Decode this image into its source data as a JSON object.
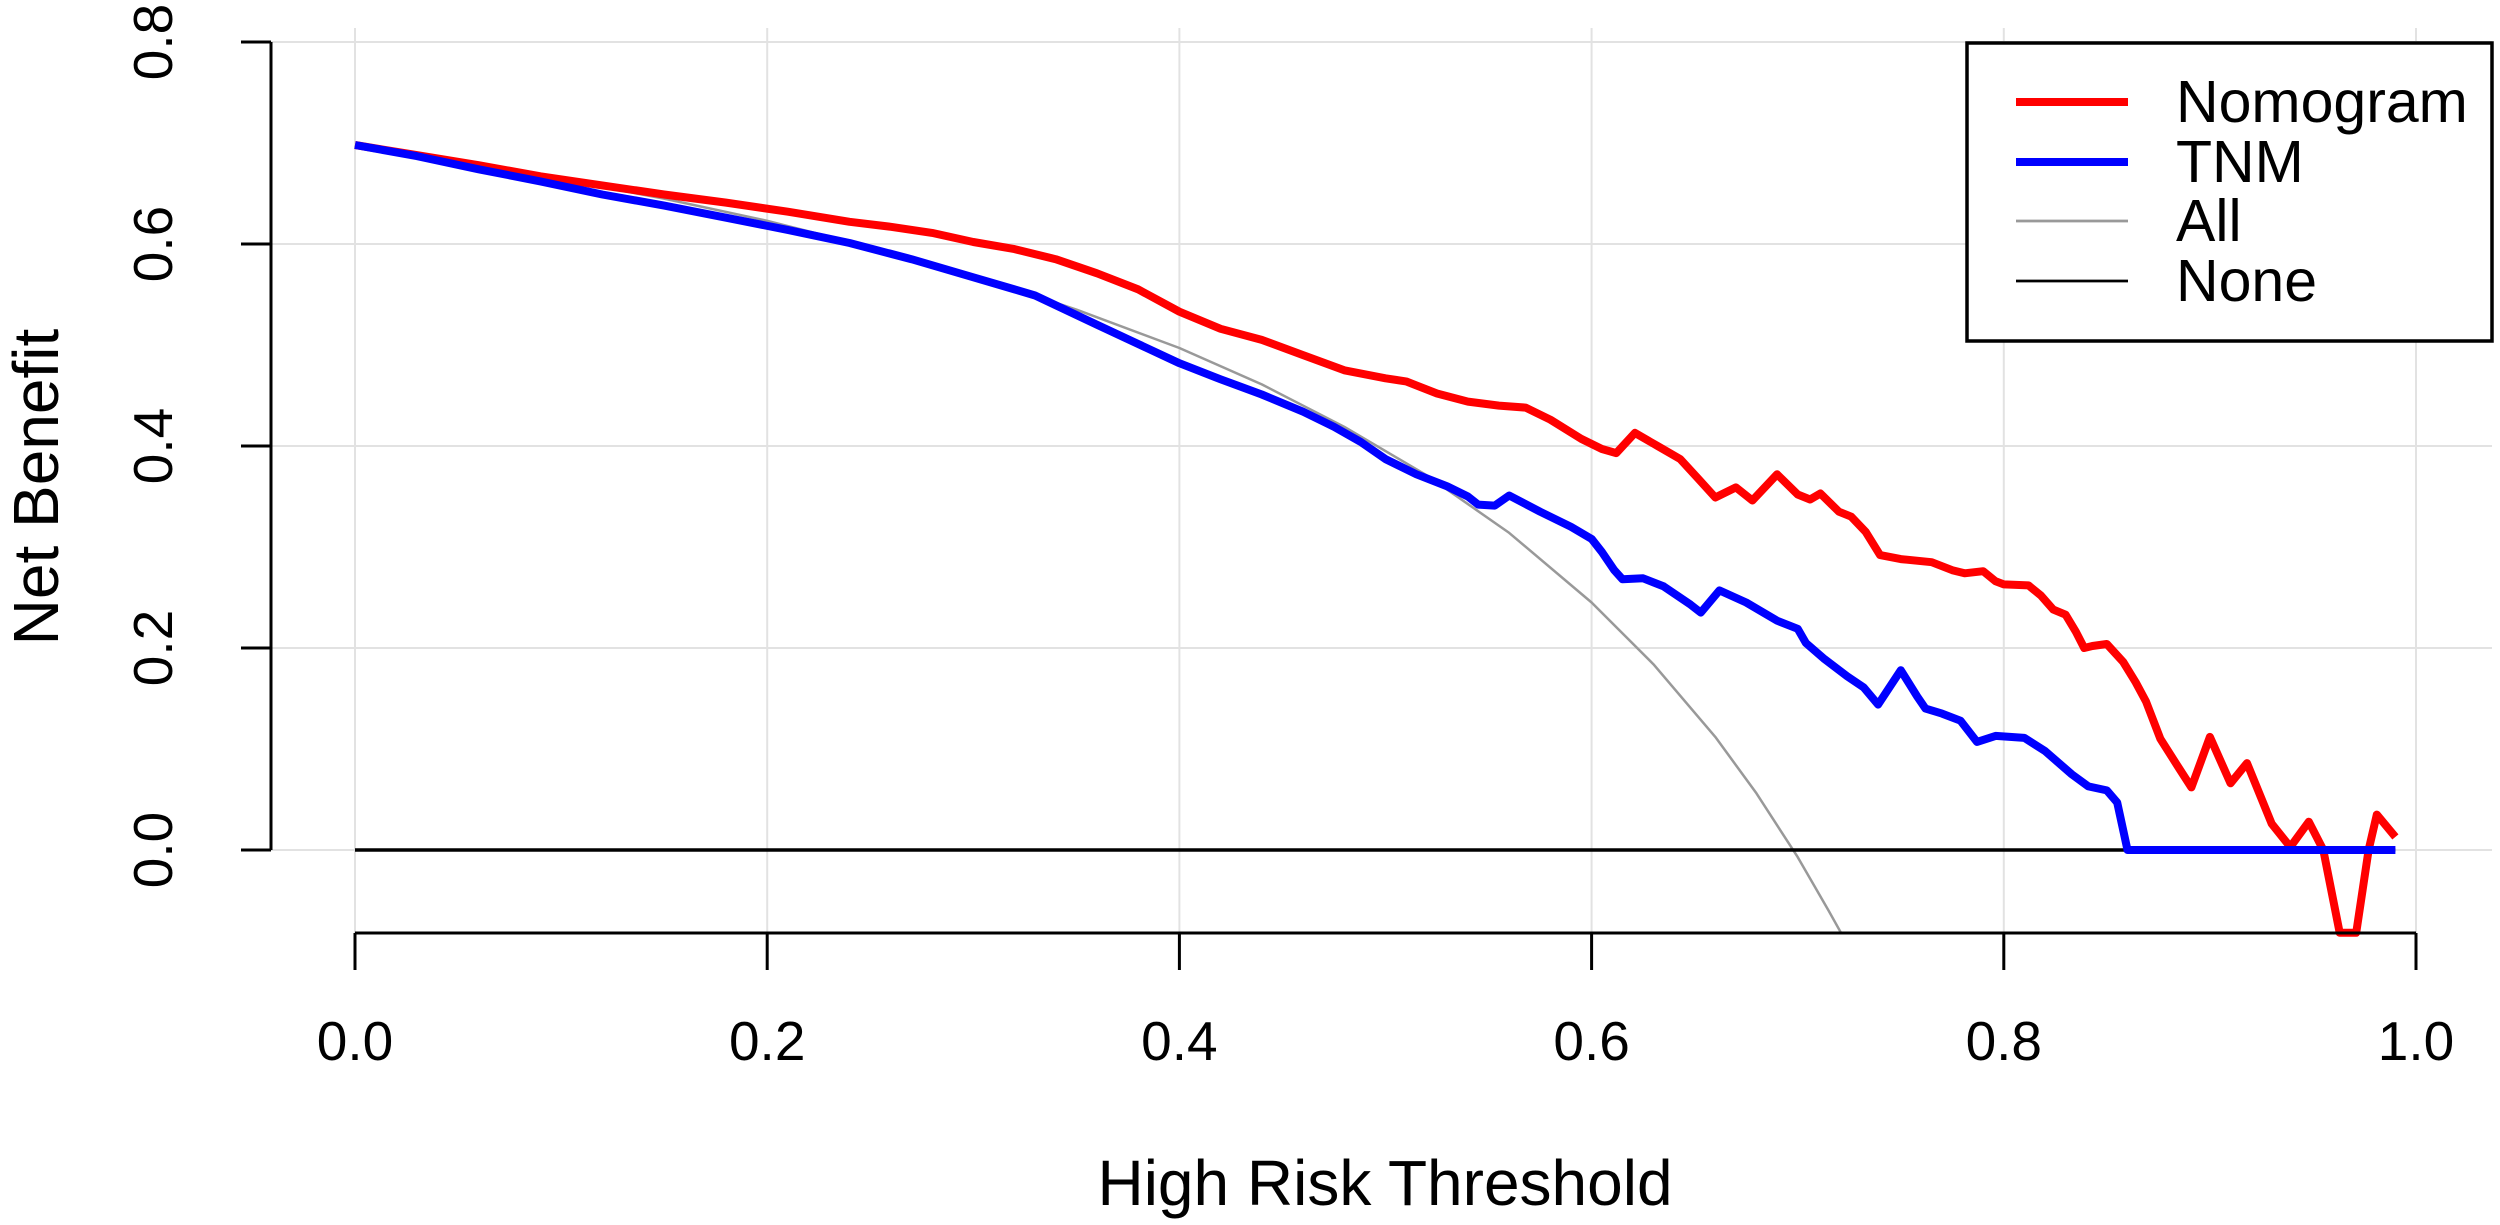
{
  "figure": {
    "background": "#ffffff",
    "kind": "R base-graphics decision curve analysis plot"
  },
  "chart_data": {
    "type": "line",
    "title": "",
    "xlabel": "High Risk Threshold",
    "ylabel": "Net Benefit",
    "xlim": [
      0.0,
      1.0
    ],
    "ylim": [
      -0.082,
      0.8
    ],
    "grid": true,
    "grid_color": "#e2e2e2",
    "axis_color": "#000000",
    "x_ticks": [
      {
        "value": 0.0,
        "label": "0.0"
      },
      {
        "value": 0.2,
        "label": "0.2"
      },
      {
        "value": 0.4,
        "label": "0.4"
      },
      {
        "value": 0.6,
        "label": "0.6"
      },
      {
        "value": 0.8,
        "label": "0.8"
      },
      {
        "value": 1.0,
        "label": "1.0"
      }
    ],
    "y_ticks": [
      {
        "value": 0.0,
        "label": "0.0"
      },
      {
        "value": 0.2,
        "label": "0.2"
      },
      {
        "value": 0.4,
        "label": "0.4"
      },
      {
        "value": 0.6,
        "label": "0.6"
      },
      {
        "value": 0.8,
        "label": "0.8"
      }
    ],
    "legend": {
      "position": "top-right",
      "border_color": "#000000",
      "fill": "#ffffff",
      "entries": [
        {
          "label": "Nomogram",
          "color": "#ff0000",
          "lineweight": "thick"
        },
        {
          "label": "TNM",
          "color": "#0000ff",
          "lineweight": "thick"
        },
        {
          "label": "All",
          "color": "#999999",
          "lineweight": "thin"
        },
        {
          "label": "None",
          "color": "#000000",
          "lineweight": "thin"
        }
      ]
    },
    "series": [
      {
        "name": "All",
        "color": "#999999",
        "stroke_width": 2.5,
        "points": [
          [
            0.0,
            0.698
          ],
          [
            0.05,
            0.682
          ],
          [
            0.1,
            0.664
          ],
          [
            0.15,
            0.645
          ],
          [
            0.2,
            0.623
          ],
          [
            0.25,
            0.597
          ],
          [
            0.3,
            0.569
          ],
          [
            0.35,
            0.535
          ],
          [
            0.4,
            0.497
          ],
          [
            0.44,
            0.461
          ],
          [
            0.48,
            0.419
          ],
          [
            0.52,
            0.371
          ],
          [
            0.56,
            0.314
          ],
          [
            0.6,
            0.245
          ],
          [
            0.63,
            0.184
          ],
          [
            0.66,
            0.112
          ],
          [
            0.68,
            0.056
          ],
          [
            0.7,
            -0.007
          ],
          [
            0.715,
            -0.06
          ],
          [
            0.721,
            -0.082
          ]
        ]
      },
      {
        "name": "None",
        "color": "#000000",
        "stroke_width": 3.5,
        "points": [
          [
            0.0,
            0.0
          ],
          [
            0.99,
            0.0
          ]
        ]
      },
      {
        "name": "Nomogram",
        "color": "#ff0000",
        "stroke_width": 8,
        "points": [
          [
            0.0,
            0.698
          ],
          [
            0.03,
            0.688
          ],
          [
            0.06,
            0.678
          ],
          [
            0.09,
            0.667
          ],
          [
            0.12,
            0.658
          ],
          [
            0.15,
            0.649
          ],
          [
            0.18,
            0.641
          ],
          [
            0.21,
            0.632
          ],
          [
            0.24,
            0.622
          ],
          [
            0.26,
            0.617
          ],
          [
            0.28,
            0.611
          ],
          [
            0.3,
            0.602
          ],
          [
            0.32,
            0.595
          ],
          [
            0.34,
            0.585
          ],
          [
            0.36,
            0.571
          ],
          [
            0.38,
            0.555
          ],
          [
            0.4,
            0.533
          ],
          [
            0.42,
            0.516
          ],
          [
            0.44,
            0.505
          ],
          [
            0.46,
            0.49
          ],
          [
            0.48,
            0.475
          ],
          [
            0.5,
            0.467
          ],
          [
            0.51,
            0.464
          ],
          [
            0.525,
            0.452
          ],
          [
            0.54,
            0.444
          ],
          [
            0.555,
            0.44
          ],
          [
            0.568,
            0.438
          ],
          [
            0.58,
            0.426
          ],
          [
            0.595,
            0.407
          ],
          [
            0.605,
            0.397
          ],
          [
            0.612,
            0.393
          ],
          [
            0.621,
            0.413
          ],
          [
            0.632,
            0.4
          ],
          [
            0.643,
            0.387
          ],
          [
            0.652,
            0.367
          ],
          [
            0.66,
            0.349
          ],
          [
            0.67,
            0.359
          ],
          [
            0.678,
            0.346
          ],
          [
            0.69,
            0.372
          ],
          [
            0.7,
            0.352
          ],
          [
            0.706,
            0.347
          ],
          [
            0.711,
            0.353
          ],
          [
            0.72,
            0.335
          ],
          [
            0.726,
            0.33
          ],
          [
            0.733,
            0.315
          ],
          [
            0.74,
            0.292
          ],
          [
            0.75,
            0.288
          ],
          [
            0.765,
            0.285
          ],
          [
            0.775,
            0.277
          ],
          [
            0.781,
            0.274
          ],
          [
            0.79,
            0.276
          ],
          [
            0.796,
            0.266
          ],
          [
            0.8,
            0.263
          ],
          [
            0.812,
            0.262
          ],
          [
            0.818,
            0.252
          ],
          [
            0.824,
            0.238
          ],
          [
            0.83,
            0.233
          ],
          [
            0.835,
            0.216
          ],
          [
            0.839,
            0.2
          ],
          [
            0.843,
            0.202
          ],
          [
            0.85,
            0.204
          ],
          [
            0.858,
            0.186
          ],
          [
            0.864,
            0.166
          ],
          [
            0.869,
            0.147
          ],
          [
            0.876,
            0.11
          ],
          [
            0.885,
            0.081
          ],
          [
            0.891,
            0.062
          ],
          [
            0.9,
            0.112
          ],
          [
            0.91,
            0.066
          ],
          [
            0.918,
            0.086
          ],
          [
            0.93,
            0.026
          ],
          [
            0.939,
            0.003
          ],
          [
            0.948,
            0.028
          ],
          [
            0.955,
            0.0
          ],
          [
            0.963,
            -0.082
          ],
          [
            0.971,
            -0.082
          ],
          [
            0.977,
            0.0
          ],
          [
            0.981,
            0.035
          ],
          [
            0.99,
            0.013
          ]
        ]
      },
      {
        "name": "TNM",
        "color": "#0000ff",
        "stroke_width": 8,
        "points": [
          [
            0.0,
            0.698
          ],
          [
            0.03,
            0.687
          ],
          [
            0.06,
            0.674
          ],
          [
            0.09,
            0.662
          ],
          [
            0.12,
            0.649
          ],
          [
            0.15,
            0.638
          ],
          [
            0.18,
            0.626
          ],
          [
            0.21,
            0.614
          ],
          [
            0.24,
            0.601
          ],
          [
            0.27,
            0.585
          ],
          [
            0.3,
            0.567
          ],
          [
            0.32,
            0.555
          ],
          [
            0.33,
            0.549
          ],
          [
            0.36,
            0.52
          ],
          [
            0.38,
            0.501
          ],
          [
            0.4,
            0.482
          ],
          [
            0.42,
            0.466
          ],
          [
            0.44,
            0.451
          ],
          [
            0.46,
            0.434
          ],
          [
            0.475,
            0.419
          ],
          [
            0.488,
            0.404
          ],
          [
            0.5,
            0.387
          ],
          [
            0.515,
            0.372
          ],
          [
            0.53,
            0.36
          ],
          [
            0.54,
            0.35
          ],
          [
            0.545,
            0.342
          ],
          [
            0.553,
            0.341
          ],
          [
            0.56,
            0.351
          ],
          [
            0.575,
            0.335
          ],
          [
            0.59,
            0.32
          ],
          [
            0.6,
            0.308
          ],
          [
            0.605,
            0.295
          ],
          [
            0.611,
            0.277
          ],
          [
            0.615,
            0.268
          ],
          [
            0.625,
            0.269
          ],
          [
            0.635,
            0.261
          ],
          [
            0.648,
            0.243
          ],
          [
            0.653,
            0.235
          ],
          [
            0.662,
            0.257
          ],
          [
            0.675,
            0.245
          ],
          [
            0.69,
            0.227
          ],
          [
            0.7,
            0.219
          ],
          [
            0.704,
            0.205
          ],
          [
            0.713,
            0.189
          ],
          [
            0.724,
            0.172
          ],
          [
            0.732,
            0.161
          ],
          [
            0.739,
            0.144
          ],
          [
            0.75,
            0.178
          ],
          [
            0.758,
            0.152
          ],
          [
            0.762,
            0.14
          ],
          [
            0.77,
            0.135
          ],
          [
            0.779,
            0.128
          ],
          [
            0.787,
            0.107
          ],
          [
            0.796,
            0.113
          ],
          [
            0.81,
            0.111
          ],
          [
            0.82,
            0.098
          ],
          [
            0.833,
            0.075
          ],
          [
            0.841,
            0.063
          ],
          [
            0.85,
            0.059
          ],
          [
            0.855,
            0.047
          ],
          [
            0.86,
            0.0
          ],
          [
            0.99,
            0.0
          ]
        ]
      }
    ]
  }
}
